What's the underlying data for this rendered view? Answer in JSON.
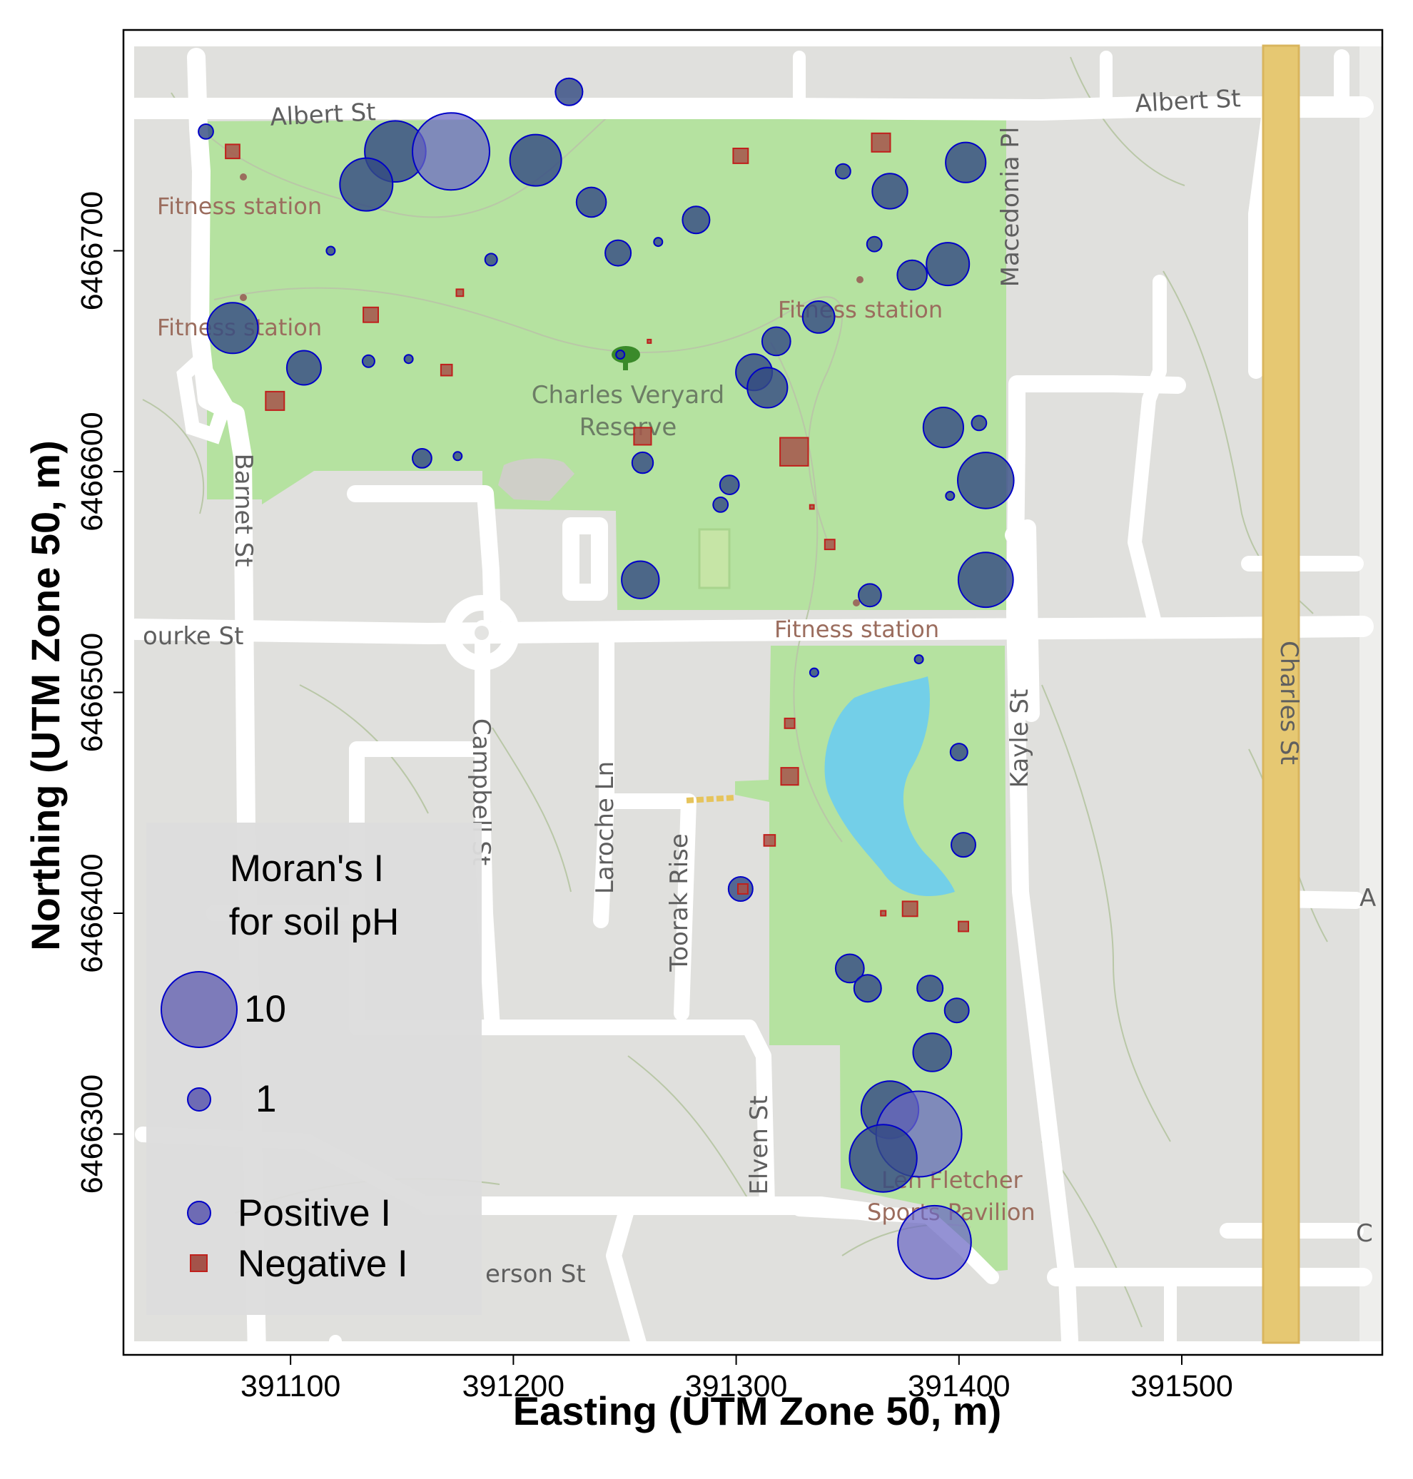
{
  "chart_data": {
    "type": "scatter",
    "title": "",
    "xlabel": "Easting (UTM Zone 50, m)",
    "ylabel": "Northing (UTM Zone 50, m)",
    "xlim": [
      391025,
      391590
    ],
    "ylim": [
      6466200,
      6466800
    ],
    "x_ticks": [
      "391100",
      "391200",
      "391300",
      "391400",
      "391500"
    ],
    "y_ticks": [
      "6466300",
      "6466400",
      "6466500",
      "6466600",
      "6466700"
    ],
    "legend": {
      "title_lines": [
        "Moran's I",
        "for soil pH"
      ],
      "size_labels": [
        "10",
        "1"
      ],
      "type_labels": [
        "Positive I",
        "Negative I"
      ],
      "placement": "bottom-left"
    },
    "series": [
      {
        "name": "Positive I",
        "color": "#3d46a6",
        "points": [
          {
            "x": 391225,
            "y": 6466772,
            "i": 1.0
          },
          {
            "x": 391062,
            "y": 6466754,
            "i": 0.3
          },
          {
            "x": 391147,
            "y": 6466745,
            "i": 5.1
          },
          {
            "x": 391172,
            "y": 6466745,
            "i": 8.1
          },
          {
            "x": 391210,
            "y": 6466741,
            "i": 3.6
          },
          {
            "x": 391134,
            "y": 6466730,
            "i": 3.8
          },
          {
            "x": 391235,
            "y": 6466722,
            "i": 1.2
          },
          {
            "x": 391403,
            "y": 6466740,
            "i": 2.2
          },
          {
            "x": 391348,
            "y": 6466736,
            "i": 0.3
          },
          {
            "x": 391369,
            "y": 6466727,
            "i": 1.7
          },
          {
            "x": 391282,
            "y": 6466714,
            "i": 1.0
          },
          {
            "x": 391265,
            "y": 6466704,
            "i": 0.1
          },
          {
            "x": 391118,
            "y": 6466700,
            "i": 0.1
          },
          {
            "x": 391190,
            "y": 6466696,
            "i": 0.2
          },
          {
            "x": 391247,
            "y": 6466699,
            "i": 0.9
          },
          {
            "x": 391362,
            "y": 6466703,
            "i": 0.3
          },
          {
            "x": 391395,
            "y": 6466694,
            "i": 2.5
          },
          {
            "x": 391379,
            "y": 6466689,
            "i": 1.2
          },
          {
            "x": 391074,
            "y": 6466665,
            "i": 3.5
          },
          {
            "x": 391337,
            "y": 6466670,
            "i": 1.4
          },
          {
            "x": 391318,
            "y": 6466659,
            "i": 1.1
          },
          {
            "x": 391106,
            "y": 6466647,
            "i": 1.6
          },
          {
            "x": 391135,
            "y": 6466650,
            "i": 0.2
          },
          {
            "x": 391153,
            "y": 6466651,
            "i": 0.1
          },
          {
            "x": 391248,
            "y": 6466653,
            "i": 0.1
          },
          {
            "x": 391308,
            "y": 6466645,
            "i": 1.8
          },
          {
            "x": 391314,
            "y": 6466638,
            "i": 2.2
          },
          {
            "x": 391393,
            "y": 6466620,
            "i": 2.2
          },
          {
            "x": 391409,
            "y": 6466622,
            "i": 0.3
          },
          {
            "x": 391159,
            "y": 6466606,
            "i": 0.5
          },
          {
            "x": 391175,
            "y": 6466607,
            "i": 0.1
          },
          {
            "x": 391258,
            "y": 6466604,
            "i": 0.6
          },
          {
            "x": 391412,
            "y": 6466596,
            "i": 4.3
          },
          {
            "x": 391297,
            "y": 6466594,
            "i": 0.5
          },
          {
            "x": 391293,
            "y": 6466585,
            "i": 0.3
          },
          {
            "x": 391396,
            "y": 6466589,
            "i": 0.1
          },
          {
            "x": 391257,
            "y": 6466551,
            "i": 1.9
          },
          {
            "x": 391412,
            "y": 6466551,
            "i": 4.1
          },
          {
            "x": 391360,
            "y": 6466544,
            "i": 0.7
          },
          {
            "x": 391335,
            "y": 6466509,
            "i": 0.1
          },
          {
            "x": 391382,
            "y": 6466515,
            "i": 0.1
          },
          {
            "x": 391400,
            "y": 6466473,
            "i": 0.4
          },
          {
            "x": 391402,
            "y": 6466431,
            "i": 0.8
          },
          {
            "x": 391302,
            "y": 6466411,
            "i": 0.8
          },
          {
            "x": 391351,
            "y": 6466375,
            "i": 1.1
          },
          {
            "x": 391359,
            "y": 6466366,
            "i": 1.0
          },
          {
            "x": 391387,
            "y": 6466366,
            "i": 0.9
          },
          {
            "x": 391399,
            "y": 6466356,
            "i": 0.8
          },
          {
            "x": 391388,
            "y": 6466337,
            "i": 2.0
          },
          {
            "x": 391369,
            "y": 6466311,
            "i": 4.5
          },
          {
            "x": 391382,
            "y": 6466300,
            "i": 10.0
          },
          {
            "x": 391366,
            "y": 6466289,
            "i": 6.2
          },
          {
            "x": 391389,
            "y": 6466251,
            "i": 7.3
          }
        ]
      },
      {
        "name": "Negative I",
        "color": "#a4534a",
        "points": [
          {
            "x": 391074,
            "y": 6466745,
            "i": 0.8
          },
          {
            "x": 391302,
            "y": 6466743,
            "i": 0.9
          },
          {
            "x": 391365,
            "y": 6466749,
            "i": 1.4
          },
          {
            "x": 391176,
            "y": 6466681,
            "i": 0.2
          },
          {
            "x": 391136,
            "y": 6466671,
            "i": 0.9
          },
          {
            "x": 391170,
            "y": 6466646,
            "i": 0.5
          },
          {
            "x": 391093,
            "y": 6466632,
            "i": 1.4
          },
          {
            "x": 391261,
            "y": 6466659,
            "i": 0.03
          },
          {
            "x": 391258,
            "y": 6466616,
            "i": 1.2
          },
          {
            "x": 391326,
            "y": 6466609,
            "i": 3.2
          },
          {
            "x": 391334,
            "y": 6466584,
            "i": 0.07
          },
          {
            "x": 391342,
            "y": 6466567,
            "i": 0.4
          },
          {
            "x": 391324,
            "y": 6466486,
            "i": 0.4
          },
          {
            "x": 391324,
            "y": 6466462,
            "i": 1.2
          },
          {
            "x": 391315,
            "y": 6466433,
            "i": 0.5
          },
          {
            "x": 391303,
            "y": 6466411,
            "i": 0.4
          },
          {
            "x": 391378,
            "y": 6466402,
            "i": 0.9
          },
          {
            "x": 391366,
            "y": 6466400,
            "i": 0.1
          },
          {
            "x": 391402,
            "y": 6466394,
            "i": 0.4
          }
        ]
      }
    ]
  },
  "map": {
    "streets": [
      "Albert St",
      "Albert St",
      "Macedonia Pl",
      "Barnet St",
      "ourke St",
      "Campbell St",
      "Laroche Ln",
      "Toorak Rise",
      "Elven St",
      "Kayle St",
      "Charles St",
      "erson St",
      "A",
      "C"
    ],
    "places": [
      "Fitness station",
      "Fitness station",
      "Fitness station",
      "Fitness station",
      "Charles Veryard",
      "Reserve",
      "Len Fletcher",
      "Sports Pavilion"
    ],
    "colors": {
      "park": "#b5e2a0",
      "base": "#e0e0dd",
      "road": "#ffffff",
      "water": "#6ccdef",
      "highway": "#e6c872",
      "highway_edge": "#d9b55d"
    }
  }
}
